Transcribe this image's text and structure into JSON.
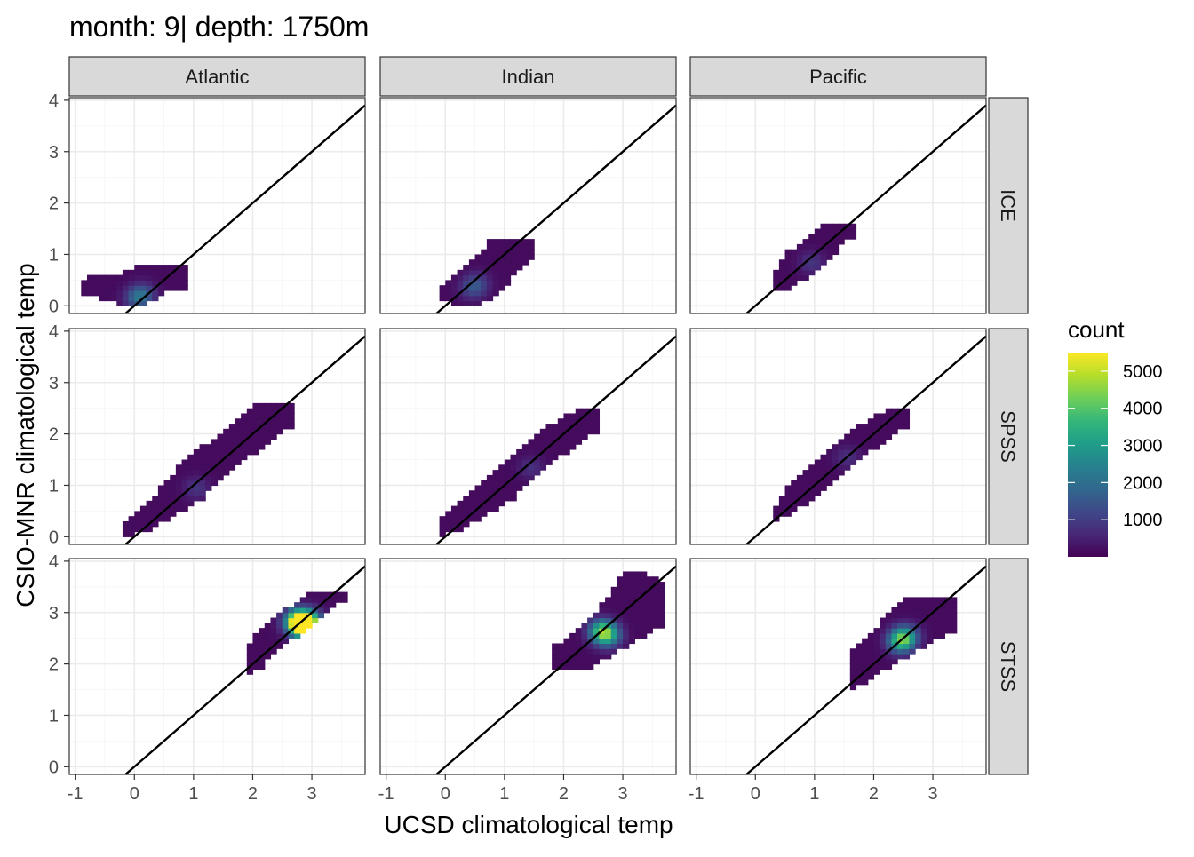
{
  "title": "month: 9| depth: 1750m",
  "chart_data": {
    "type": "heatmap",
    "subtype": "faceted 2D bin count (hex/rect density) with 1:1 reference line",
    "xlabel": "UCSD climatological temp",
    "ylabel": "CSIO-MNR climatological temp",
    "xlim": [
      -1.1,
      3.9
    ],
    "ylim": [
      -0.15,
      4.05
    ],
    "x_ticks": [
      -1,
      0,
      1,
      2,
      3
    ],
    "x_tick_labels": [
      "-1",
      "0",
      "1",
      "2",
      "3"
    ],
    "y_ticks": [
      0,
      1,
      2,
      3,
      4
    ],
    "y_tick_labels": [
      "0",
      "1",
      "2",
      "3",
      "4"
    ],
    "grid": true,
    "reference_line": {
      "slope": 1,
      "intercept": 0
    },
    "facet_columns": [
      "Atlantic",
      "Indian",
      "Pacific"
    ],
    "facet_rows": [
      "ICE",
      "SPSS",
      "STSS"
    ],
    "legend": {
      "title": "count",
      "position": "right",
      "colormap": "viridis",
      "range": [
        0,
        5500
      ],
      "ticks": [
        1000,
        2000,
        3000,
        4000,
        5000
      ],
      "tick_labels": [
        "1000",
        "2000",
        "3000",
        "4000",
        "5000"
      ],
      "colors": [
        "#440154",
        "#482878",
        "#3e4989",
        "#31688e",
        "#26828e",
        "#1f9e89",
        "#35b779",
        "#6ece58",
        "#b5de2b",
        "#fde725"
      ]
    },
    "bin_width": 0.1,
    "panels": [
      {
        "column": "Atlantic",
        "row": "ICE",
        "bands": [
          [
            -0.9,
            0.2,
            0.4
          ],
          [
            -0.8,
            0.2,
            0.5
          ],
          [
            -0.5,
            0.1,
            0.6
          ],
          [
            -0.2,
            0.0,
            0.6
          ],
          [
            0.0,
            0.0,
            0.7
          ],
          [
            0.3,
            0.1,
            0.8
          ],
          [
            0.6,
            0.3,
            0.8
          ],
          [
            0.8,
            0.3,
            0.8
          ]
        ],
        "peaks": [
          {
            "x": 0.0,
            "y": 0.1,
            "count": 1400
          },
          {
            "x": 0.1,
            "y": 0.2,
            "count": 900
          }
        ]
      },
      {
        "column": "Indian",
        "row": "ICE",
        "bands": [
          [
            -0.1,
            0.1,
            0.3
          ],
          [
            0.2,
            0.0,
            0.6
          ],
          [
            0.5,
            0.0,
            0.9
          ],
          [
            0.8,
            0.1,
            1.3
          ],
          [
            1.1,
            0.5,
            1.3
          ],
          [
            1.4,
            0.9,
            1.3
          ]
        ],
        "peaks": [
          {
            "x": 0.4,
            "y": 0.3,
            "count": 900
          },
          {
            "x": 0.5,
            "y": 0.4,
            "count": 700
          }
        ]
      },
      {
        "column": "Pacific",
        "row": "ICE",
        "bands": [
          [
            0.3,
            0.3,
            0.6
          ],
          [
            0.5,
            0.3,
            1.0
          ],
          [
            0.8,
            0.5,
            1.2
          ],
          [
            1.1,
            0.7,
            1.5
          ],
          [
            1.4,
            1.1,
            1.6
          ],
          [
            1.6,
            1.3,
            1.6
          ]
        ],
        "peaks": [
          {
            "x": 0.9,
            "y": 0.8,
            "count": 700
          }
        ]
      },
      {
        "column": "Indian",
        "row": "SPSS",
        "bands": [
          [
            -0.1,
            0.0,
            0.3
          ],
          [
            0.2,
            0.1,
            0.6
          ],
          [
            0.5,
            0.3,
            0.9
          ],
          [
            0.8,
            0.5,
            1.2
          ],
          [
            1.1,
            0.7,
            1.5
          ],
          [
            1.4,
            1.0,
            1.8
          ],
          [
            1.7,
            1.3,
            2.1
          ],
          [
            2.0,
            1.6,
            2.3
          ],
          [
            2.3,
            1.8,
            2.5
          ],
          [
            2.5,
            2.0,
            2.5
          ]
        ],
        "peaks": [
          {
            "x": 1.4,
            "y": 1.3,
            "count": 600
          }
        ]
      },
      {
        "column": "Atlantic",
        "row": "SPSS",
        "bands": [
          [
            -0.2,
            0.0,
            0.2
          ],
          [
            0.2,
            0.1,
            0.6
          ],
          [
            0.5,
            0.3,
            1.0
          ],
          [
            0.8,
            0.5,
            1.4
          ],
          [
            1.1,
            0.7,
            1.7
          ],
          [
            1.4,
            1.0,
            1.9
          ],
          [
            1.7,
            1.3,
            2.2
          ],
          [
            2.0,
            1.6,
            2.5
          ],
          [
            2.3,
            1.8,
            2.6
          ],
          [
            2.6,
            2.1,
            2.6
          ]
        ],
        "peaks": [
          {
            "x": 1.0,
            "y": 0.9,
            "count": 700
          }
        ]
      },
      {
        "column": "Pacific",
        "row": "SPSS",
        "bands": [
          [
            0.3,
            0.3,
            0.5
          ],
          [
            0.5,
            0.4,
            0.9
          ],
          [
            0.8,
            0.6,
            1.2
          ],
          [
            1.1,
            0.9,
            1.5
          ],
          [
            1.4,
            1.1,
            1.8
          ],
          [
            1.7,
            1.4,
            2.1
          ],
          [
            2.0,
            1.7,
            2.3
          ],
          [
            2.3,
            1.9,
            2.5
          ],
          [
            2.5,
            2.1,
            2.5
          ]
        ],
        "peaks": [
          {
            "x": 1.5,
            "y": 1.5,
            "count": 600
          }
        ]
      },
      {
        "column": "Atlantic",
        "row": "STSS",
        "bands": [
          [
            1.9,
            1.8,
            2.3
          ],
          [
            2.1,
            1.9,
            2.6
          ],
          [
            2.3,
            2.1,
            2.8
          ],
          [
            2.5,
            2.3,
            3.0
          ],
          [
            2.7,
            2.5,
            3.1
          ],
          [
            2.9,
            2.6,
            3.3
          ],
          [
            3.1,
            2.8,
            3.4
          ],
          [
            3.3,
            3.0,
            3.4
          ],
          [
            3.5,
            3.2,
            3.4
          ]
        ],
        "peaks": [
          {
            "x": 2.8,
            "y": 2.7,
            "count": 5500
          },
          {
            "x": 2.7,
            "y": 2.8,
            "count": 3500
          },
          {
            "x": 2.9,
            "y": 2.8,
            "count": 2500
          }
        ]
      },
      {
        "column": "Indian",
        "row": "STSS",
        "bands": [
          [
            1.8,
            1.9,
            2.3
          ],
          [
            2.1,
            1.9,
            2.5
          ],
          [
            2.4,
            1.9,
            2.8
          ],
          [
            2.7,
            2.1,
            3.2
          ],
          [
            3.0,
            2.3,
            3.8
          ],
          [
            3.3,
            2.5,
            3.8
          ],
          [
            3.6,
            2.7,
            3.6
          ]
        ],
        "peaks": [
          {
            "x": 2.6,
            "y": 2.6,
            "count": 3200
          },
          {
            "x": 2.7,
            "y": 2.5,
            "count": 2200
          }
        ]
      },
      {
        "column": "Pacific",
        "row": "STSS",
        "bands": [
          [
            1.6,
            1.5,
            2.2
          ],
          [
            1.9,
            1.6,
            2.5
          ],
          [
            2.2,
            1.9,
            2.9
          ],
          [
            2.5,
            2.1,
            3.2
          ],
          [
            2.8,
            2.3,
            3.3
          ],
          [
            3.1,
            2.5,
            3.3
          ],
          [
            3.3,
            2.6,
            3.3
          ]
        ],
        "peaks": [
          {
            "x": 2.4,
            "y": 2.4,
            "count": 3000
          },
          {
            "x": 2.5,
            "y": 2.5,
            "count": 2000
          }
        ]
      }
    ]
  }
}
